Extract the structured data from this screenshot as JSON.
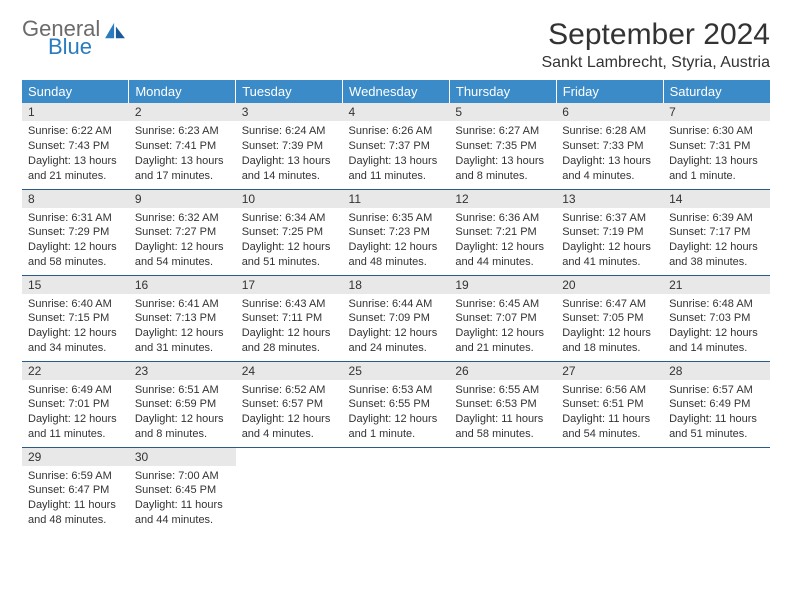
{
  "logo": {
    "text1": "General",
    "text2": "Blue"
  },
  "title": "September 2024",
  "location": "Sankt Lambrecht, Styria, Austria",
  "header_bg": "#3b8bc8",
  "day_headers": [
    "Sunday",
    "Monday",
    "Tuesday",
    "Wednesday",
    "Thursday",
    "Friday",
    "Saturday"
  ],
  "days": [
    {
      "n": "1",
      "sr": "6:22 AM",
      "ss": "7:43 PM",
      "dl": "13 hours and 21 minutes."
    },
    {
      "n": "2",
      "sr": "6:23 AM",
      "ss": "7:41 PM",
      "dl": "13 hours and 17 minutes."
    },
    {
      "n": "3",
      "sr": "6:24 AM",
      "ss": "7:39 PM",
      "dl": "13 hours and 14 minutes."
    },
    {
      "n": "4",
      "sr": "6:26 AM",
      "ss": "7:37 PM",
      "dl": "13 hours and 11 minutes."
    },
    {
      "n": "5",
      "sr": "6:27 AM",
      "ss": "7:35 PM",
      "dl": "13 hours and 8 minutes."
    },
    {
      "n": "6",
      "sr": "6:28 AM",
      "ss": "7:33 PM",
      "dl": "13 hours and 4 minutes."
    },
    {
      "n": "7",
      "sr": "6:30 AM",
      "ss": "7:31 PM",
      "dl": "13 hours and 1 minute."
    },
    {
      "n": "8",
      "sr": "6:31 AM",
      "ss": "7:29 PM",
      "dl": "12 hours and 58 minutes."
    },
    {
      "n": "9",
      "sr": "6:32 AM",
      "ss": "7:27 PM",
      "dl": "12 hours and 54 minutes."
    },
    {
      "n": "10",
      "sr": "6:34 AM",
      "ss": "7:25 PM",
      "dl": "12 hours and 51 minutes."
    },
    {
      "n": "11",
      "sr": "6:35 AM",
      "ss": "7:23 PM",
      "dl": "12 hours and 48 minutes."
    },
    {
      "n": "12",
      "sr": "6:36 AM",
      "ss": "7:21 PM",
      "dl": "12 hours and 44 minutes."
    },
    {
      "n": "13",
      "sr": "6:37 AM",
      "ss": "7:19 PM",
      "dl": "12 hours and 41 minutes."
    },
    {
      "n": "14",
      "sr": "6:39 AM",
      "ss": "7:17 PM",
      "dl": "12 hours and 38 minutes."
    },
    {
      "n": "15",
      "sr": "6:40 AM",
      "ss": "7:15 PM",
      "dl": "12 hours and 34 minutes."
    },
    {
      "n": "16",
      "sr": "6:41 AM",
      "ss": "7:13 PM",
      "dl": "12 hours and 31 minutes."
    },
    {
      "n": "17",
      "sr": "6:43 AM",
      "ss": "7:11 PM",
      "dl": "12 hours and 28 minutes."
    },
    {
      "n": "18",
      "sr": "6:44 AM",
      "ss": "7:09 PM",
      "dl": "12 hours and 24 minutes."
    },
    {
      "n": "19",
      "sr": "6:45 AM",
      "ss": "7:07 PM",
      "dl": "12 hours and 21 minutes."
    },
    {
      "n": "20",
      "sr": "6:47 AM",
      "ss": "7:05 PM",
      "dl": "12 hours and 18 minutes."
    },
    {
      "n": "21",
      "sr": "6:48 AM",
      "ss": "7:03 PM",
      "dl": "12 hours and 14 minutes."
    },
    {
      "n": "22",
      "sr": "6:49 AM",
      "ss": "7:01 PM",
      "dl": "12 hours and 11 minutes."
    },
    {
      "n": "23",
      "sr": "6:51 AM",
      "ss": "6:59 PM",
      "dl": "12 hours and 8 minutes."
    },
    {
      "n": "24",
      "sr": "6:52 AM",
      "ss": "6:57 PM",
      "dl": "12 hours and 4 minutes."
    },
    {
      "n": "25",
      "sr": "6:53 AM",
      "ss": "6:55 PM",
      "dl": "12 hours and 1 minute."
    },
    {
      "n": "26",
      "sr": "6:55 AM",
      "ss": "6:53 PM",
      "dl": "11 hours and 58 minutes."
    },
    {
      "n": "27",
      "sr": "6:56 AM",
      "ss": "6:51 PM",
      "dl": "11 hours and 54 minutes."
    },
    {
      "n": "28",
      "sr": "6:57 AM",
      "ss": "6:49 PM",
      "dl": "11 hours and 51 minutes."
    },
    {
      "n": "29",
      "sr": "6:59 AM",
      "ss": "6:47 PM",
      "dl": "11 hours and 48 minutes."
    },
    {
      "n": "30",
      "sr": "7:00 AM",
      "ss": "6:45 PM",
      "dl": "11 hours and 44 minutes."
    }
  ],
  "labels": {
    "sunrise": "Sunrise:",
    "sunset": "Sunset:",
    "daylight": "Daylight:"
  }
}
